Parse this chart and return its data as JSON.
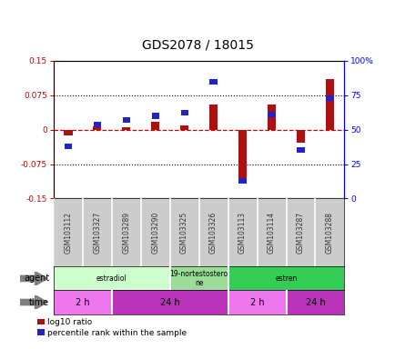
{
  "title": "GDS2078 / 18015",
  "samples": [
    "GSM103112",
    "GSM103327",
    "GSM103289",
    "GSM103290",
    "GSM103325",
    "GSM103326",
    "GSM103113",
    "GSM103114",
    "GSM103287",
    "GSM103288"
  ],
  "log10_ratio": [
    -0.012,
    0.008,
    0.005,
    0.018,
    0.01,
    0.055,
    -0.105,
    0.055,
    -0.028,
    0.11
  ],
  "percentile_rank": [
    38,
    54,
    57,
    60,
    62,
    85,
    13,
    61,
    35,
    73
  ],
  "ylim_left": [
    -0.15,
    0.15
  ],
  "ylim_right": [
    0,
    100
  ],
  "yticks_left": [
    -0.15,
    -0.075,
    0,
    0.075,
    0.15
  ],
  "yticks_right": [
    0,
    25,
    50,
    75,
    100
  ],
  "hlines": [
    0.075,
    -0.075
  ],
  "bar_color_red": "#aa1111",
  "bar_color_blue": "#2222cc",
  "dashed_zero_color": "#cc0000",
  "agent_labels": [
    {
      "label": "estradiol",
      "start": 0,
      "end": 4,
      "color": "#ccffcc"
    },
    {
      "label": "19-nortestostero\nne",
      "start": 4,
      "end": 6,
      "color": "#99dd99"
    },
    {
      "label": "estren",
      "start": 6,
      "end": 10,
      "color": "#33cc55"
    }
  ],
  "time_labels": [
    {
      "label": "2 h",
      "start": 0,
      "end": 2,
      "color": "#ee77ee"
    },
    {
      "label": "24 h",
      "start": 2,
      "end": 6,
      "color": "#bb33bb"
    },
    {
      "label": "2 h",
      "start": 6,
      "end": 8,
      "color": "#ee77ee"
    },
    {
      "label": "24 h",
      "start": 8,
      "end": 10,
      "color": "#bb33bb"
    }
  ],
  "legend_red_label": "log10 ratio",
  "legend_blue_label": "percentile rank within the sample",
  "bar_width": 0.3,
  "sample_label_color": "#333333",
  "bg_color": "#ffffff",
  "plot_bg_color": "#ffffff",
  "spine_color": "#000000"
}
